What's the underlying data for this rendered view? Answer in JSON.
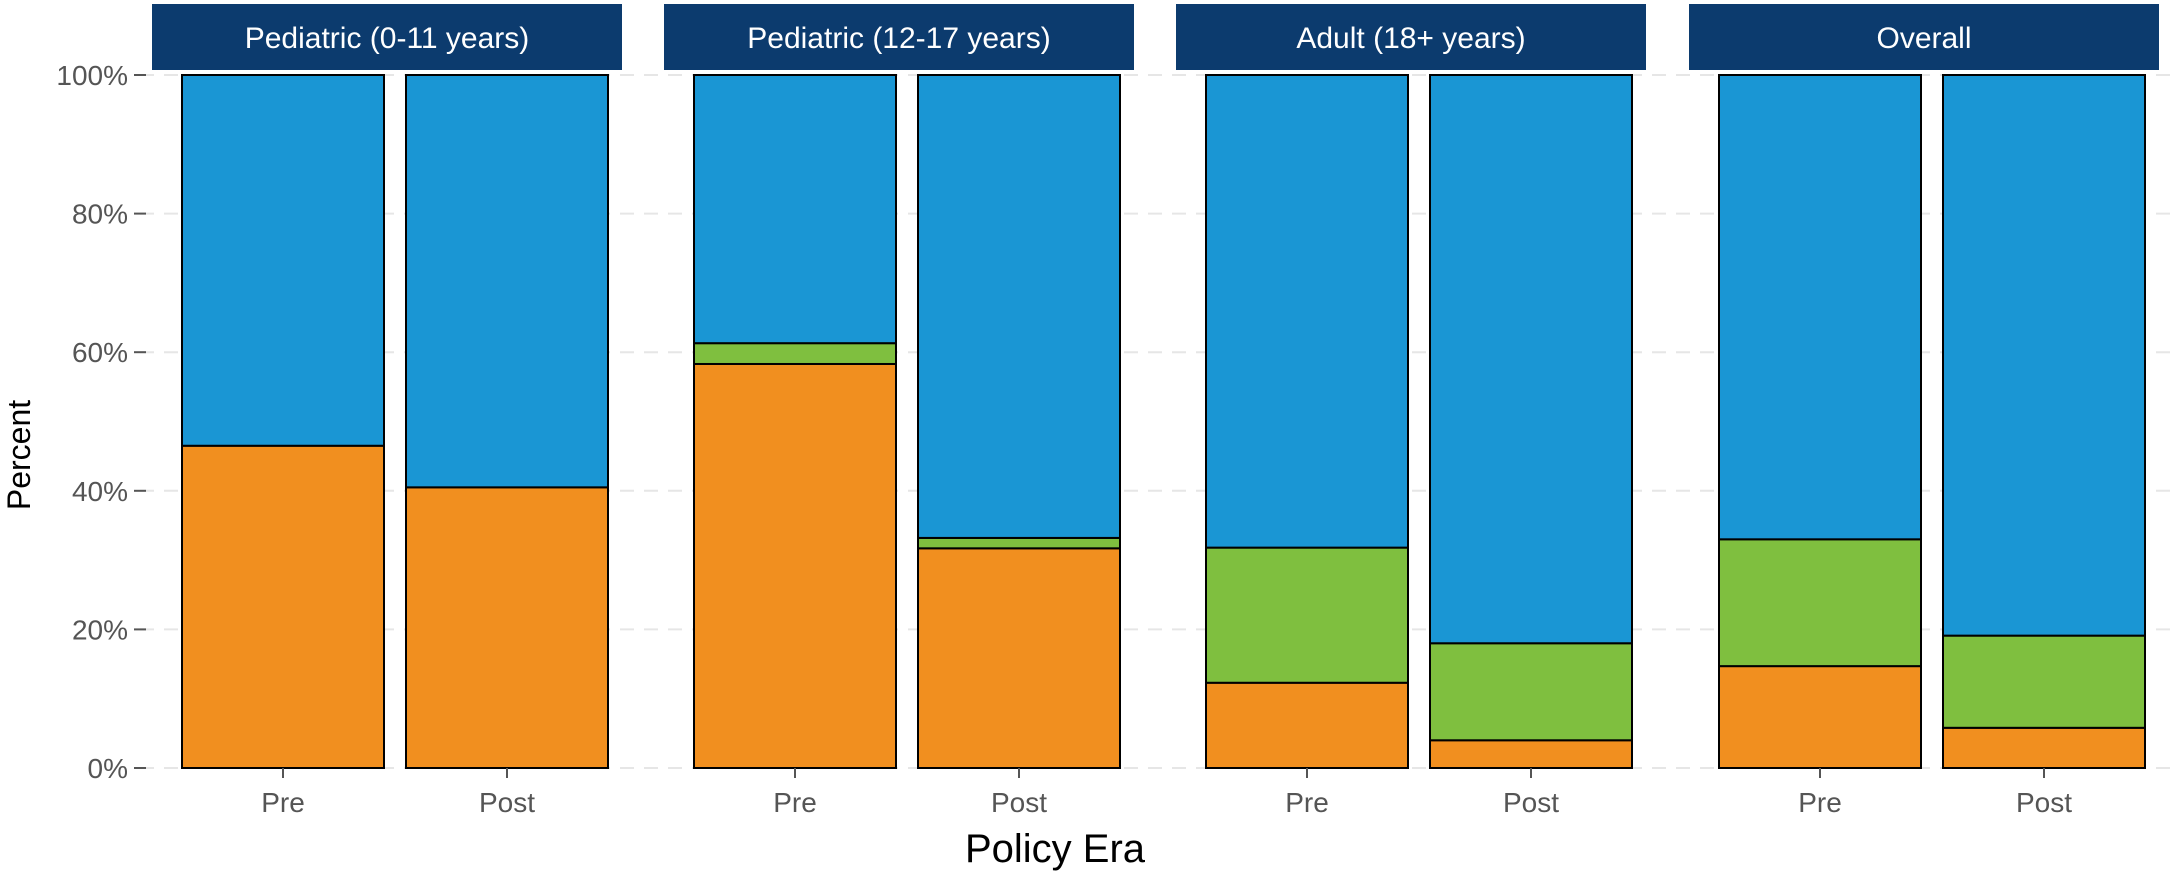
{
  "chart_data": {
    "type": "bar",
    "stacked": true,
    "xlabel": "Policy Era",
    "ylabel": "Percent",
    "ylim": [
      0,
      100
    ],
    "yticks": [
      "0%",
      "20%",
      "40%",
      "60%",
      "80%",
      "100%"
    ],
    "grid": true,
    "legend": "none",
    "series_colors": [
      "#f18f1f",
      "#7fbf3f",
      "#1a96d4"
    ],
    "panels": [
      {
        "title": "Pediatric (0-11 years)",
        "categories": [
          "Pre",
          "Post"
        ],
        "series": [
          {
            "values": [
              46.5,
              40.5
            ]
          },
          {
            "values": [
              0,
              0
            ]
          },
          {
            "values": [
              53.5,
              59.5
            ]
          }
        ]
      },
      {
        "title": "Pediatric (12-17 years)",
        "categories": [
          "Pre",
          "Post"
        ],
        "series": [
          {
            "values": [
              58.3,
              31.7
            ]
          },
          {
            "values": [
              3.0,
              1.5
            ]
          },
          {
            "values": [
              38.7,
              66.8
            ]
          }
        ]
      },
      {
        "title": "Adult (18+ years)",
        "categories": [
          "Pre",
          "Post"
        ],
        "series": [
          {
            "values": [
              12.3,
              4.0
            ]
          },
          {
            "values": [
              19.5,
              14.0
            ]
          },
          {
            "values": [
              68.2,
              82.0
            ]
          }
        ]
      },
      {
        "title": "Overall",
        "categories": [
          "Pre",
          "Post"
        ],
        "series": [
          {
            "values": [
              14.7,
              5.8
            ]
          },
          {
            "values": [
              18.3,
              13.3
            ]
          },
          {
            "values": [
              67.0,
              80.9
            ]
          }
        ]
      }
    ]
  }
}
